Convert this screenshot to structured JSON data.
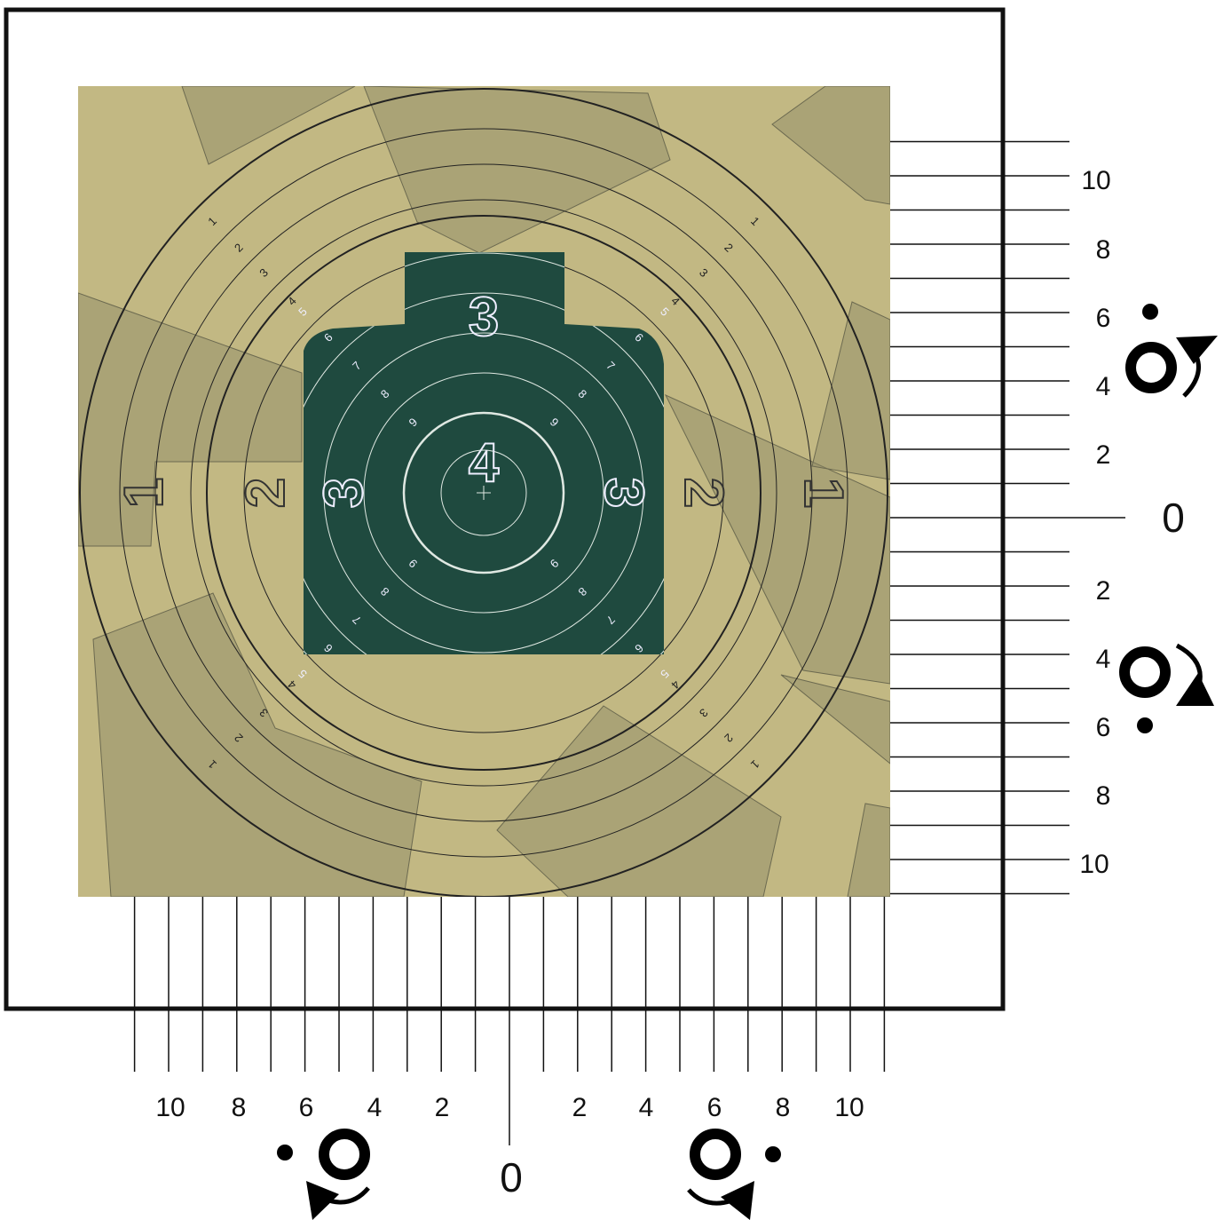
{
  "target": {
    "outer_zone_numbers": [
      "1",
      "2"
    ],
    "silhouette_zone_numbers": [
      "3",
      "4"
    ],
    "ring_numbers": [
      "1",
      "2",
      "3",
      "4",
      "5",
      "6",
      "7",
      "8",
      "9"
    ],
    "colors": {
      "paper": "#c2b883",
      "overlay": "#8e8a66",
      "silhouette": "#1f4a3f",
      "frame": "#111111"
    }
  },
  "right_scale": {
    "labels_above": [
      "10",
      "8",
      "6",
      "4",
      "2"
    ],
    "zero": "0",
    "labels_below": [
      "2",
      "4",
      "6",
      "8",
      "10"
    ],
    "adjust_icons": [
      "sight-up-arrow-icon",
      "sight-down-arrow-icon"
    ]
  },
  "bottom_scale": {
    "labels_left": [
      "10",
      "8",
      "6",
      "4",
      "2"
    ],
    "zero": "0",
    "labels_right": [
      "2",
      "4",
      "6",
      "8",
      "10"
    ],
    "adjust_icons": [
      "sight-left-arrow-icon",
      "sight-right-arrow-icon"
    ]
  }
}
